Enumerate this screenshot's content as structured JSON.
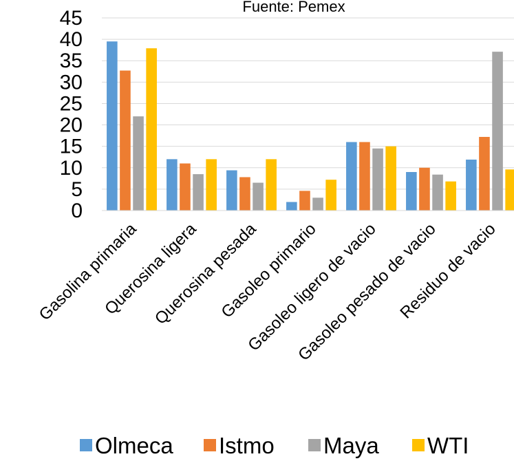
{
  "chart_data": {
    "type": "bar",
    "title": "Fuente: Pemex",
    "categories": [
      "Gasolina primaria",
      "Querosina ligera",
      "Querosina pesada",
      "Gasoleo primario",
      "Gasoleo ligero de vacio",
      "Gasoleo pesado de vacio",
      "Residuo de vacio"
    ],
    "series": [
      {
        "name": "Olmeca",
        "color": "#5B9BD5",
        "values": [
          39.5,
          12,
          9.4,
          2,
          16,
          9,
          11.9
        ]
      },
      {
        "name": "Istmo",
        "color": "#ED7D31",
        "values": [
          32.7,
          11,
          7.8,
          4.6,
          16,
          10,
          17.2
        ]
      },
      {
        "name": "Maya",
        "color": "#A5A5A5",
        "values": [
          22,
          8.5,
          6.5,
          3,
          14.5,
          8.4,
          37.1
        ]
      },
      {
        "name": "WTI",
        "color": "#FFC000",
        "values": [
          37.9,
          12,
          12,
          7.2,
          15,
          6.8,
          9.6
        ]
      }
    ],
    "yticks": [
      "0",
      "5",
      "10",
      "15",
      "20",
      "25",
      "30",
      "35",
      "40",
      "45"
    ],
    "ylim": [
      0,
      45
    ],
    "grid": true,
    "legend": "bottom"
  }
}
